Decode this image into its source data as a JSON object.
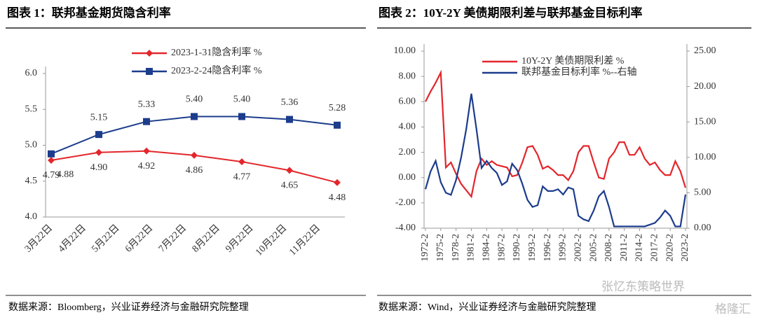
{
  "watermark": [
    "张忆东策略世界",
    "格隆汇"
  ],
  "chart_data": [
    {
      "type": "line",
      "title": "图表 1：联邦基金期货隐含利率",
      "source": "数据来源：Bloomberg，兴业证券经济与金融研究院整理",
      "xticks": [
        "3月22日",
        "4月22日",
        "5月22日",
        "6月22日",
        "7月22日",
        "8月22日",
        "9月22日",
        "10月22日",
        "11月22日"
      ],
      "ylim": [
        4,
        6
      ],
      "yticks": [
        {
          "value": 4,
          "label": "4.0"
        },
        {
          "value": 4.5,
          "label": "4.5"
        },
        {
          "value": 5,
          "label": "5.0"
        },
        {
          "value": 5.5,
          "label": "5.5"
        },
        {
          "value": 6,
          "label": "6.0"
        }
      ],
      "series": [
        {
          "name": "2023-1-31隐含利率 %",
          "color": "#e3262b",
          "marker": "diamond",
          "values": [
            4.79,
            4.9,
            4.92,
            4.86,
            4.77,
            4.65,
            4.48
          ],
          "value_labels": [
            "4.79",
            "4.90",
            "4.92",
            "4.86",
            "4.77",
            "4.65",
            "4.48"
          ]
        },
        {
          "name": "2023-2-24隐含利率 %",
          "color": "#1c3c8c",
          "marker": "square",
          "values": [
            4.88,
            5.15,
            5.33,
            5.4,
            5.4,
            5.36,
            5.28
          ],
          "value_labels": [
            "4.88",
            "5.15",
            "5.33",
            "5.40",
            "5.40",
            "5.36",
            "5.28"
          ]
        }
      ]
    },
    {
      "type": "line",
      "title": "图表 2：10Y-2Y 美债期限利差与联邦基金目标利率",
      "source": "数据来源：Wind，兴业证券经济与金融研究院整理",
      "x": [
        "1972-2",
        "1973-2",
        "1974-2",
        "1975-2",
        "1976-2",
        "1977-2",
        "1978-2",
        "1979-2",
        "1980-2",
        "1981-2",
        "1982-2",
        "1983-2",
        "1984-2",
        "1985-2",
        "1986-2",
        "1987-2",
        "1988-2",
        "1989-2",
        "1990-2",
        "1991-2",
        "1992-2",
        "1993-2",
        "1994-2",
        "1995-2",
        "1996-2",
        "1997-2",
        "1998-2",
        "1999-2",
        "2000-2",
        "2001-2",
        "2002-2",
        "2003-2",
        "2004-2",
        "2005-2",
        "2006-2",
        "2007-2",
        "2008-2",
        "2009-2",
        "2010-2",
        "2011-2",
        "2012-2",
        "2013-2",
        "2014-2",
        "2015-2",
        "2016-2",
        "2017-2",
        "2018-2",
        "2019-2",
        "2020-2",
        "2021-2",
        "2022-2",
        "2023-2"
      ],
      "xticks": [
        "1972-2",
        "1975-2",
        "1978-2",
        "1981-2",
        "1984-2",
        "1987-2",
        "1990-2",
        "1993-2",
        "1996-2",
        "1999-2",
        "2002-2",
        "2005-2",
        "2008-2",
        "2011-2",
        "2014-2",
        "2017-2",
        "2020-2",
        "2023-2"
      ],
      "ylim": [
        -4,
        10
      ],
      "yticks": [
        {
          "value": 10,
          "label": "10.00"
        },
        {
          "value": 8,
          "label": "8.00"
        },
        {
          "value": 6,
          "label": "6.00"
        },
        {
          "value": 4,
          "label": "4.00"
        },
        {
          "value": 2,
          "label": "2.00"
        },
        {
          "value": 0,
          "label": "0.00"
        },
        {
          "value": -2,
          "label": "-2.00"
        },
        {
          "value": -4,
          "label": "-4.00"
        }
      ],
      "y2lim": [
        0,
        25
      ],
      "y2ticks": [
        {
          "value": 25,
          "label": "25.00"
        },
        {
          "value": 20,
          "label": "20.00"
        },
        {
          "value": 15,
          "label": "15.00"
        },
        {
          "value": 10,
          "label": "10.00"
        },
        {
          "value": 5,
          "label": "5.00"
        },
        {
          "value": 0,
          "label": "0.00"
        }
      ],
      "series": [
        {
          "name": "10Y-2Y 美债期限利差 %",
          "color": "#e3262b",
          "values": [
            6.0,
            6.8,
            7.5,
            8.3,
            0.8,
            1.2,
            0.3,
            -0.5,
            -1.0,
            -1.5,
            0.5,
            1.5,
            1.0,
            1.3,
            1.0,
            0.9,
            0.8,
            0.1,
            0.2,
            1.2,
            2.4,
            2.5,
            1.8,
            0.7,
            0.9,
            0.6,
            0.2,
            0.2,
            -0.2,
            0.5,
            2.0,
            2.5,
            2.5,
            1.2,
            0.0,
            -0.1,
            1.5,
            2.0,
            2.8,
            2.8,
            1.8,
            1.8,
            2.4,
            1.5,
            1.0,
            1.2,
            0.6,
            0.2,
            0.2,
            1.3,
            0.5,
            -0.8
          ]
        },
        {
          "name": "联邦基金目标利率 %--右轴",
          "color": "#1c3c8c",
          "axis": "y2",
          "values": [
            5.5,
            8,
            9.5,
            6.5,
            5,
            4.7,
            6.8,
            10,
            14,
            19,
            14,
            8.5,
            9.5,
            8.5,
            7.8,
            6.1,
            6.6,
            9.1,
            8.2,
            6.25,
            4,
            3,
            3.25,
            5.9,
            5.25,
            5.25,
            5.5,
            4.75,
            5.75,
            5.5,
            1.75,
            1.25,
            1,
            2.5,
            4.5,
            5.25,
            3,
            0.25,
            0.25,
            0.25,
            0.25,
            0.25,
            0.25,
            0.25,
            0.5,
            0.75,
            1.5,
            2.5,
            1.75,
            0.25,
            0.25,
            4.75
          ]
        }
      ]
    }
  ]
}
